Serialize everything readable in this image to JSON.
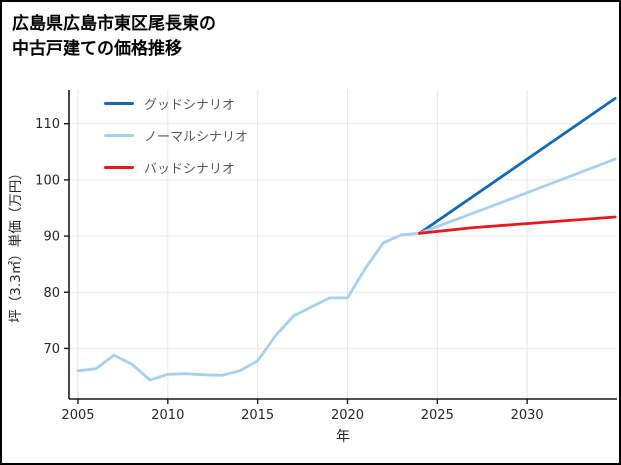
{
  "title": {
    "line1": "広島県広島市東区尾長東の",
    "line2": "中古戸建ての価格推移"
  },
  "chart_data": {
    "type": "line",
    "title": "広島県広島市東区尾長東の中古戸建ての価格推移",
    "xlabel": "年",
    "ylabel": "坪（3.3㎡）単価（万円）",
    "xlim": [
      2004.5,
      2035
    ],
    "ylim": [
      61,
      116
    ],
    "xticks": [
      2005,
      2010,
      2015,
      2020,
      2025,
      2030
    ],
    "yticks": [
      70,
      80,
      90,
      100,
      110
    ],
    "grid": true,
    "legend_position": "upper-left",
    "colors": {
      "good": "#1668b2",
      "normal": "#a8d0ee",
      "bad": "#e8191d",
      "history": "#a8d0ee",
      "grid": "#e6e6e6",
      "axis": "#1a1a1a",
      "tick_text": "#262626",
      "legend_text": "#595959"
    },
    "legend": [
      {
        "key": "good",
        "label": "グッドシナリオ"
      },
      {
        "key": "normal",
        "label": "ノーマルシナリオ"
      },
      {
        "key": "bad",
        "label": "バッドシナリオ"
      }
    ],
    "series": [
      {
        "key": "history",
        "x": [
          2005,
          2006,
          2007,
          2008,
          2009,
          2010,
          2011,
          2012,
          2013,
          2014,
          2015,
          2016,
          2017,
          2018,
          2019,
          2020,
          2021,
          2022,
          2023,
          2024
        ],
        "y": [
          66,
          66.4,
          68.8,
          67.2,
          64.4,
          65.4,
          65.5,
          65.3,
          65.2,
          66,
          67.8,
          72.3,
          75.8,
          77.4,
          79,
          79,
          84.3,
          88.8,
          90.2,
          90.5
        ]
      },
      {
        "key": "good",
        "x": [
          2024,
          2029,
          2034.9
        ],
        "y": [
          90.5,
          101.5,
          114.5
        ]
      },
      {
        "key": "normal",
        "x": [
          2024,
          2029,
          2034.9
        ],
        "y": [
          90.5,
          96.5,
          103.7
        ]
      },
      {
        "key": "bad",
        "x": [
          2024,
          2027,
          2034.9
        ],
        "y": [
          90.5,
          91.5,
          93.4
        ]
      }
    ]
  }
}
